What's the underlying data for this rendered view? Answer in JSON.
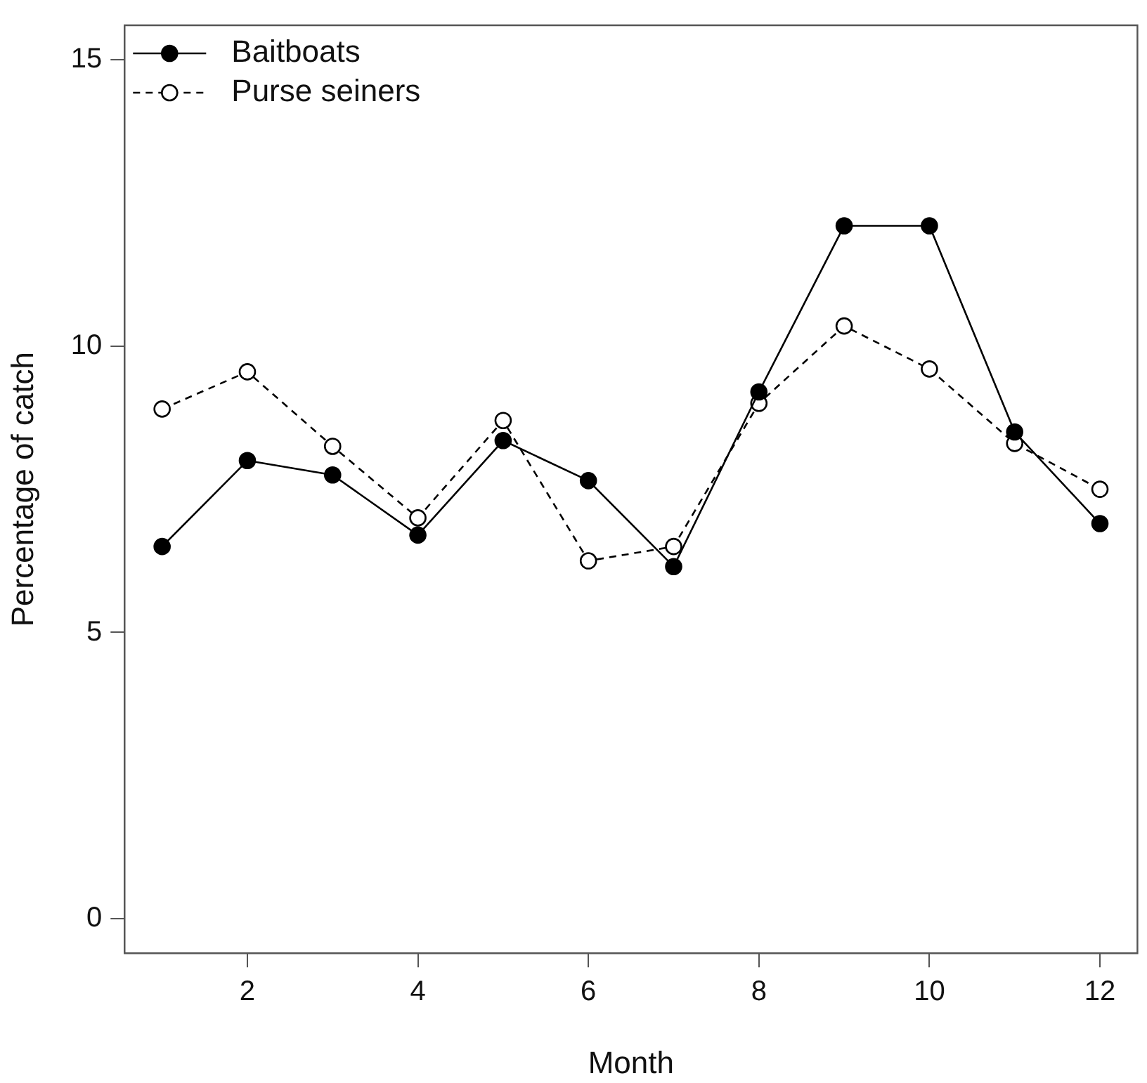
{
  "chart_data": {
    "type": "line",
    "xlabel": "Month",
    "ylabel": "Percentage of catch",
    "x": [
      1,
      2,
      3,
      4,
      5,
      6,
      7,
      8,
      9,
      10,
      11,
      12
    ],
    "series": [
      {
        "name": "Baitboats",
        "color": "#000000",
        "values": [
          6.5,
          8.0,
          7.75,
          6.7,
          8.35,
          7.65,
          6.15,
          9.2,
          12.1,
          12.1,
          8.5,
          6.9
        ],
        "marker": "circle",
        "line_style": "solid"
      },
      {
        "name": "Purse seiners",
        "color": "#000000",
        "values": [
          8.9,
          9.55,
          8.25,
          7.0,
          8.7,
          6.25,
          6.5,
          9.0,
          10.35,
          9.6,
          8.3,
          7.5
        ],
        "marker": "circle",
        "line_style": "dashed"
      }
    ],
    "xlim": [
      0.56,
      12.44
    ],
    "xticks": [
      2,
      4,
      6,
      8,
      10,
      12
    ],
    "ylim": [
      -0.6,
      15.6
    ],
    "yticks": [
      0,
      5,
      10,
      15
    ],
    "grid": false,
    "legend": "top left"
  }
}
